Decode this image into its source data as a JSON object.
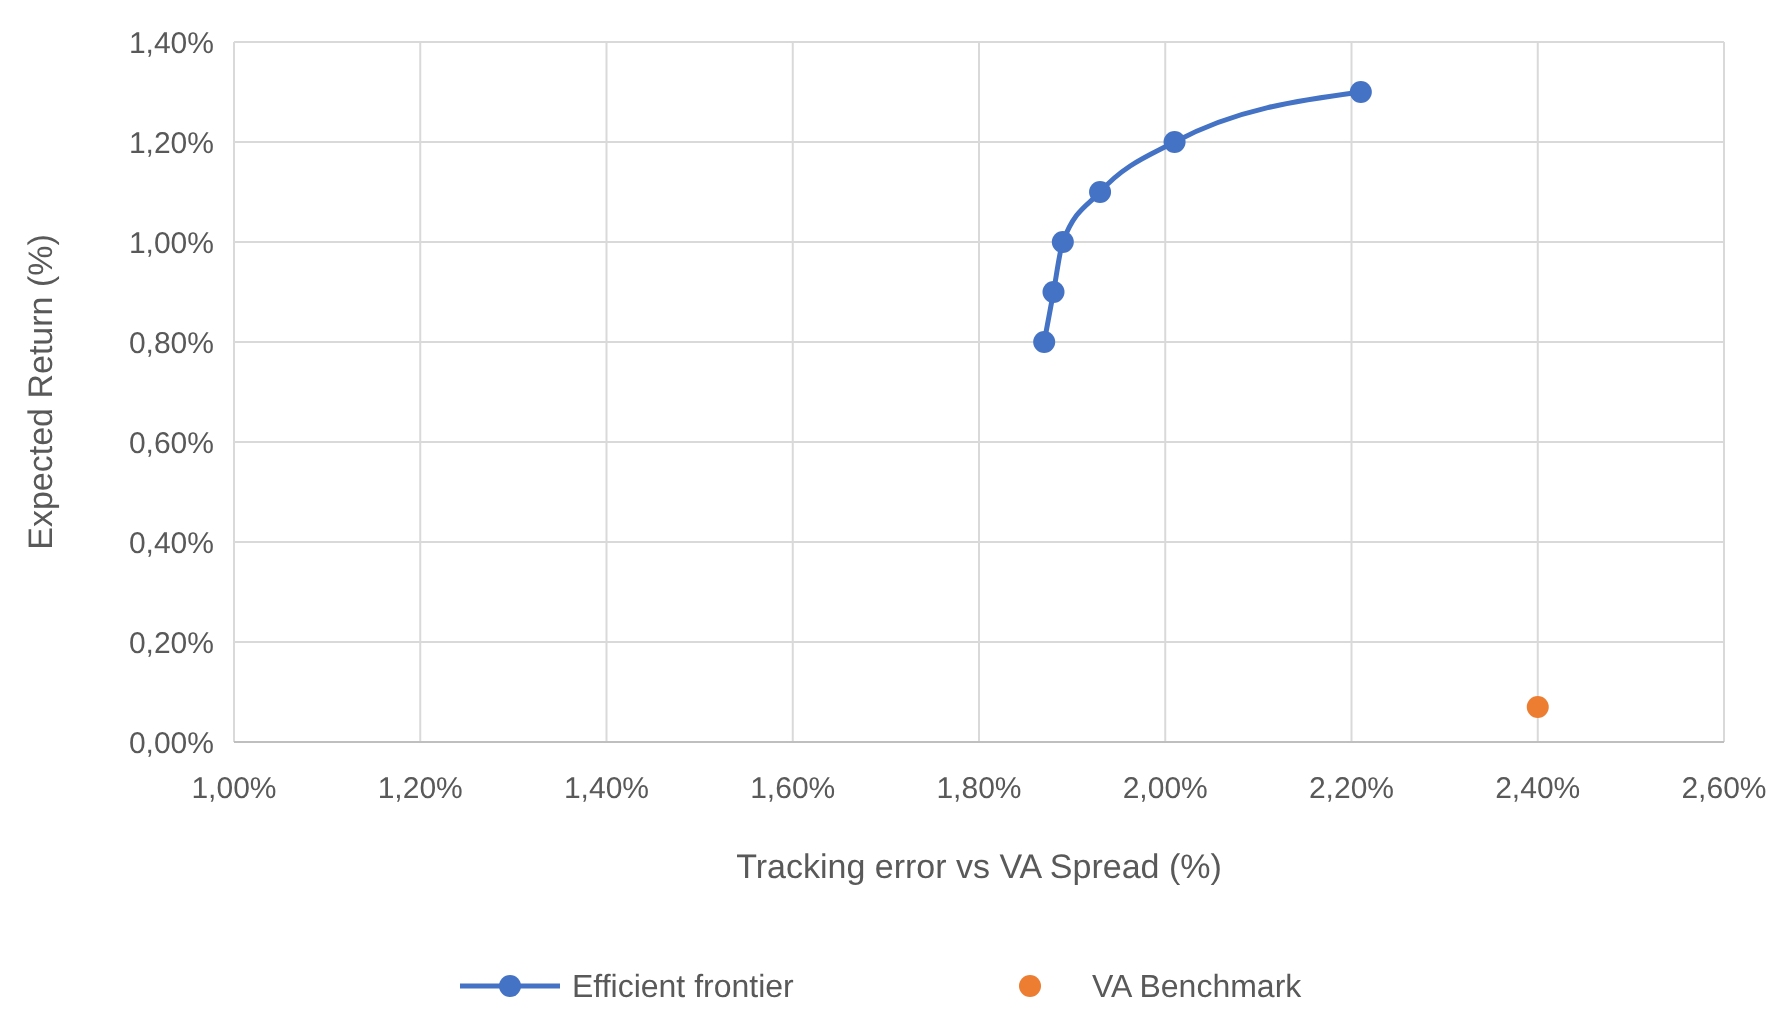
{
  "chart_data": {
    "type": "line",
    "xlabel": "Tracking error vs VA Spread (%)",
    "ylabel": "Expected Return (%)",
    "xlim": [
      1.0,
      2.6
    ],
    "ylim": [
      0,
      1.4
    ],
    "xticks": [
      {
        "value": 1.0,
        "label": "1,00%"
      },
      {
        "value": 1.2,
        "label": "1,20%"
      },
      {
        "value": 1.4,
        "label": "1,40%"
      },
      {
        "value": 1.6,
        "label": "1,60%"
      },
      {
        "value": 1.8,
        "label": "1,80%"
      },
      {
        "value": 2.0,
        "label": "2,00%"
      },
      {
        "value": 2.2,
        "label": "2,20%"
      },
      {
        "value": 2.4,
        "label": "2,40%"
      },
      {
        "value": 2.6,
        "label": "2,60%"
      }
    ],
    "yticks": [
      {
        "value": 0,
        "label": "0,00%"
      },
      {
        "value": 0.2,
        "label": "0,20%"
      },
      {
        "value": 0.4,
        "label": "0,40%"
      },
      {
        "value": 0.6,
        "label": "0,60%"
      },
      {
        "value": 0.8,
        "label": "0,80%"
      },
      {
        "value": 1.0,
        "label": "1,00%"
      },
      {
        "value": 1.2,
        "label": "1,20%"
      },
      {
        "value": 1.4,
        "label": "1,40%"
      }
    ],
    "grid": true,
    "legend": "bottom",
    "marker": "circle",
    "series": [
      {
        "name": "Efficient frontier",
        "color": "#4472c4",
        "x": [
          1.87,
          1.88,
          1.89,
          1.93,
          2.01,
          2.21
        ],
        "values": [
          0.8,
          0.9,
          1.0,
          1.1,
          1.2,
          1.3
        ]
      },
      {
        "name": "VA Benchmark",
        "type": "scatter",
        "color": "#ed7d31",
        "x": [
          2.4
        ],
        "values": [
          0.07
        ]
      }
    ]
  }
}
